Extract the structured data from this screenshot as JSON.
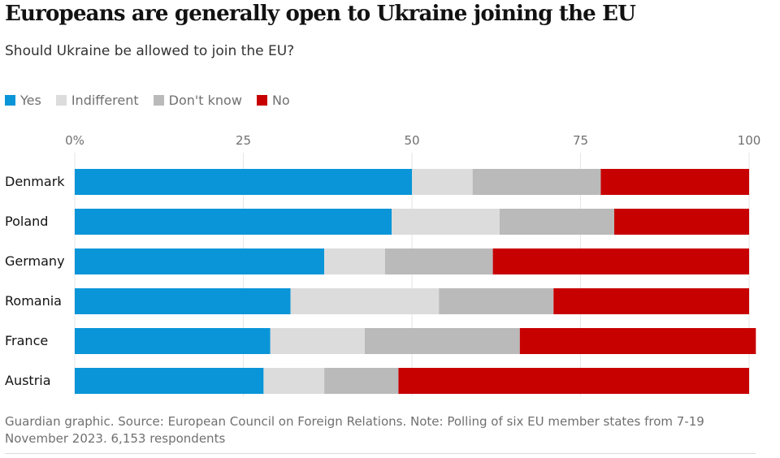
{
  "header": {
    "title": "Europeans are generally open to Ukraine joining the EU",
    "subtitle": "Should Ukraine be allowed to join the EU?"
  },
  "footer": {
    "source_note": "Guardian graphic. Source: European Council on Foreign Relations. Note: Polling of six EU member states from 7-19 November 2023. 6,153 respondents"
  },
  "chart_data": {
    "type": "bar",
    "orientation": "horizontal",
    "stacked": true,
    "title": "Europeans are generally open to Ukraine joining the EU",
    "subtitle": "Should Ukraine be allowed to join the EU?",
    "categories": [
      "Denmark",
      "Poland",
      "Germany",
      "Romania",
      "France",
      "Austria"
    ],
    "series": [
      {
        "name": "Yes",
        "color": "#0a95d8",
        "values": [
          50,
          47,
          37,
          32,
          29,
          28
        ]
      },
      {
        "name": "Indifferent",
        "color": "#dcdcdc",
        "values": [
          9,
          16,
          9,
          22,
          14,
          9
        ]
      },
      {
        "name": "Don't know",
        "color": "#bababa",
        "values": [
          19,
          17,
          16,
          17,
          23,
          11
        ]
      },
      {
        "name": "No",
        "color": "#c70000",
        "values": [
          22,
          20,
          38,
          29,
          35,
          52
        ]
      }
    ],
    "x_ticks": [
      "0%",
      "25",
      "50",
      "75",
      "100"
    ],
    "xlim": [
      0,
      100
    ],
    "grid": true,
    "legend_position": "top-left"
  }
}
